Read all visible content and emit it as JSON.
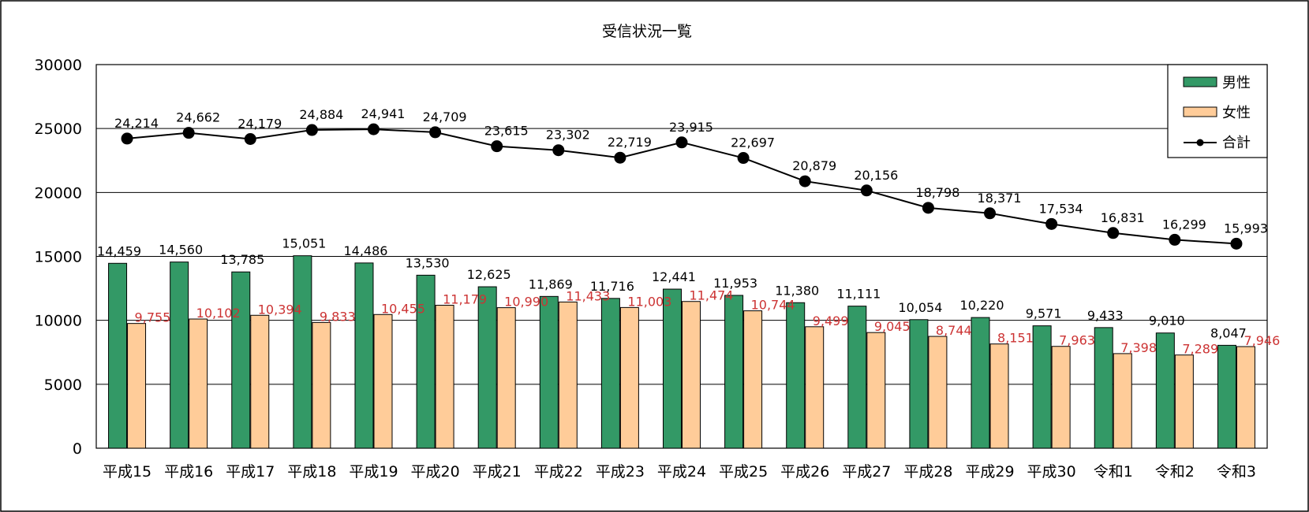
{
  "chart_data": {
    "type": "bar",
    "title": "受信状況一覧",
    "xlabel": "",
    "ylabel": "",
    "categories": [
      "平成15",
      "平成16",
      "平成17",
      "平成18",
      "平成19",
      "平成20",
      "平成21",
      "平成22",
      "平成23",
      "平成24",
      "平成25",
      "平成26",
      "平成27",
      "平成28",
      "平成29",
      "平成30",
      "令和1",
      "令和2",
      "令和3"
    ],
    "ylim": [
      0,
      30000
    ],
    "yticks": [
      0,
      5000,
      10000,
      15000,
      20000,
      25000,
      30000
    ],
    "grid": true,
    "legend_position": "top-right",
    "series": [
      {
        "name": "男性",
        "type": "bar",
        "color": "#339966",
        "label_color": "#000000",
        "values": [
          14459,
          14560,
          13785,
          15051,
          14486,
          13530,
          12625,
          11869,
          11716,
          12441,
          11953,
          11380,
          11111,
          10054,
          10220,
          9571,
          9433,
          9010,
          8047
        ],
        "labels": [
          "14,459",
          "14,560",
          "13,785",
          "15,051",
          "14,486",
          "13,530",
          "12,625",
          "11,869",
          "11,716",
          "12,441",
          "11,953",
          "11,380",
          "11,111",
          "10,054",
          "10,220",
          "9,571",
          "9,433",
          "9,010",
          "8,047"
        ]
      },
      {
        "name": "女性",
        "type": "bar",
        "color": "#FFCC99",
        "label_color": "#CC3333",
        "values": [
          9755,
          10102,
          10394,
          9833,
          10455,
          11179,
          10990,
          11433,
          11003,
          11474,
          10744,
          9499,
          9045,
          8744,
          8151,
          7963,
          7398,
          7289,
          7946
        ],
        "labels": [
          "9,755",
          "10,102",
          "10,394",
          "9,833",
          "10,455",
          "11,179",
          "10,990",
          "11,433",
          "11,003",
          "11,474",
          "10,744",
          "9,499",
          "9,045",
          "8,744",
          "8,151",
          "7,963",
          "7,398",
          "7,289",
          "7,946"
        ]
      },
      {
        "name": "合計",
        "type": "line",
        "color": "#000000",
        "label_color": "#000000",
        "values": [
          24214,
          24662,
          24179,
          24884,
          24941,
          24709,
          23615,
          23302,
          22719,
          23915,
          22697,
          20879,
          20156,
          18798,
          18371,
          17534,
          16831,
          16299,
          15993
        ],
        "labels": [
          "24,214",
          "24,662",
          "24,179",
          "24,884",
          "24,941",
          "24,709",
          "23,615",
          "23,302",
          "22,719",
          "23,915",
          "22,697",
          "20,879",
          "20,156",
          "18,798",
          "18,371",
          "17,534",
          "16,831",
          "16,299",
          "15,993"
        ]
      }
    ]
  }
}
